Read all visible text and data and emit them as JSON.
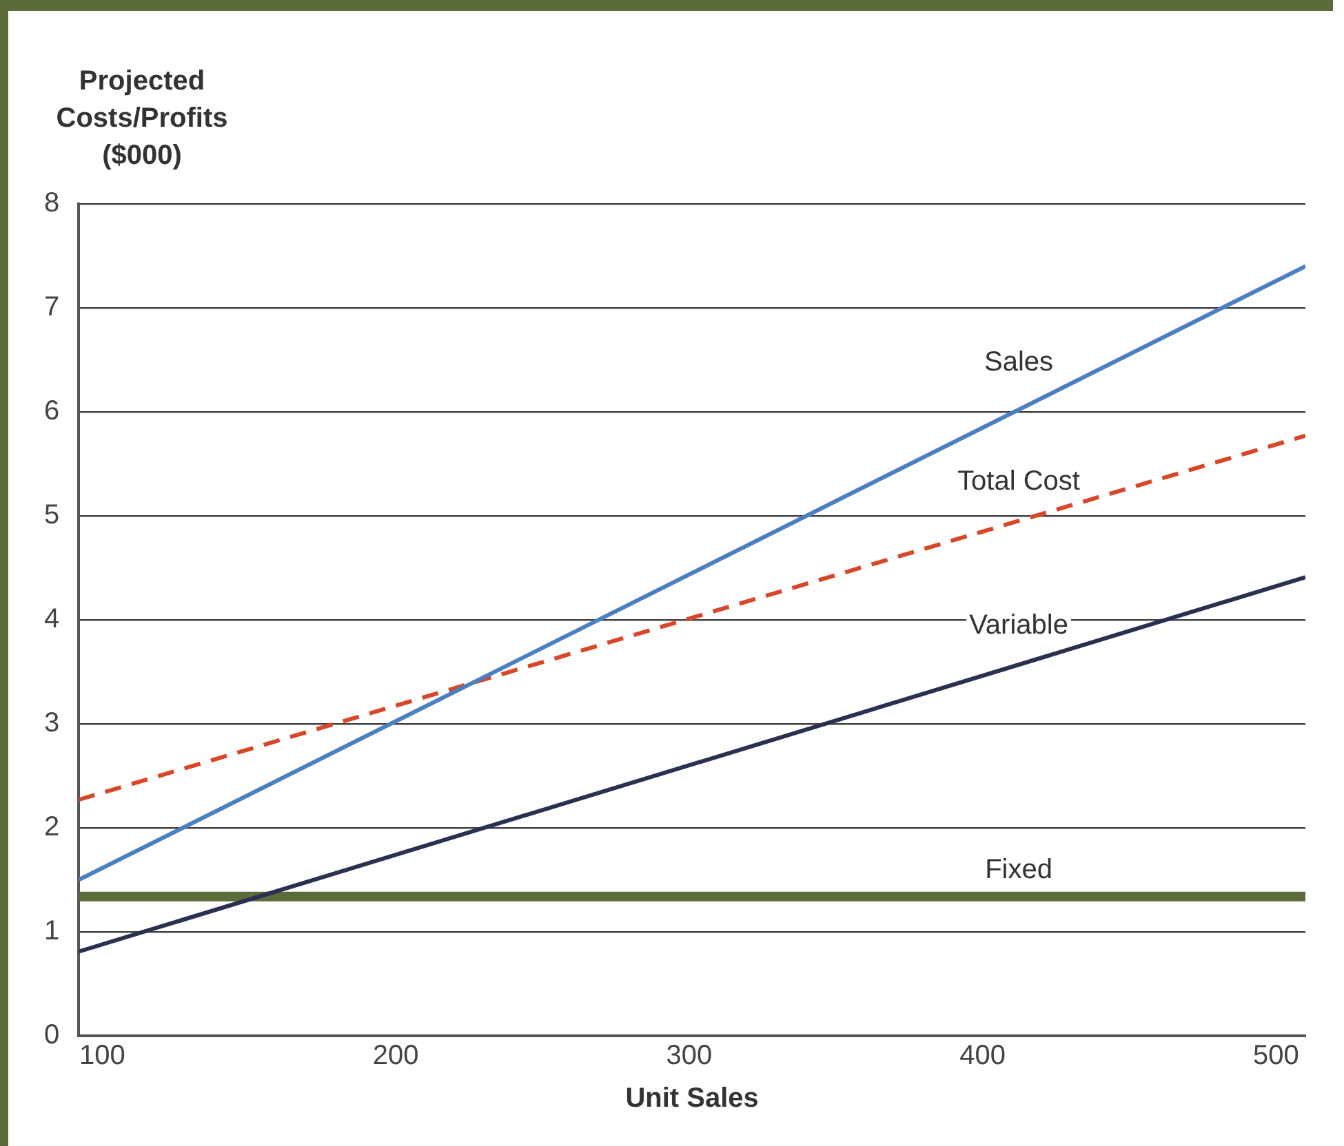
{
  "chart_data": {
    "type": "line",
    "ylabel": "Projected Costs/Profits ($000)",
    "xlabel": "Unit Sales",
    "x": [
      92,
      510
    ],
    "xlim": [
      92,
      510
    ],
    "xticks": [
      100,
      200,
      300,
      400,
      500
    ],
    "ylim": [
      0,
      8
    ],
    "yticks": [
      0,
      1,
      2,
      3,
      4,
      5,
      6,
      7,
      8
    ],
    "grid": "y",
    "legend": false,
    "marker": "none",
    "series": [
      {
        "name": "Sales",
        "color": "#4a7fc1",
        "values": [
          1.5,
          7.4
        ]
      },
      {
        "name": "Total Cost",
        "color": "#d9472b",
        "values": [
          2.27,
          5.77
        ],
        "line_style": "dashed"
      },
      {
        "name": "Variable",
        "color": "#2a3050",
        "values": [
          0.81,
          4.41
        ]
      },
      {
        "name": "Fixed",
        "color": "#5b6b3a",
        "values": [
          1.34,
          1.34
        ]
      }
    ]
  }
}
